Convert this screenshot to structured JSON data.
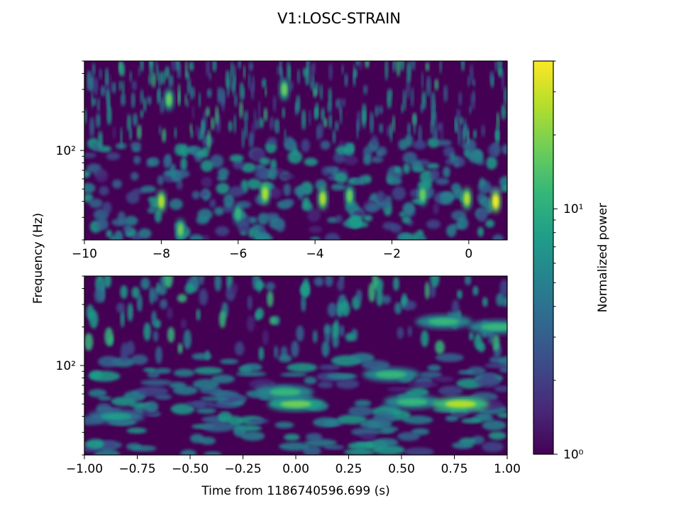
{
  "title": "V1:LOSC-STRAIN",
  "colormap": {
    "label": "Normalized power",
    "scale": "log",
    "range": [
      1,
      40
    ],
    "tick_labels": [
      "10⁰",
      "10¹"
    ],
    "tick_values": [
      1,
      10
    ],
    "stops": [
      "#440154",
      "#482878",
      "#3e4989",
      "#31688e",
      "#26828e",
      "#1f9e89",
      "#35b779",
      "#6ece58",
      "#b5de2b",
      "#fde725"
    ]
  },
  "chart_data": [
    {
      "type": "heatmap",
      "name": "qscan-wide",
      "ylabel": "Frequency (Hz)",
      "xlabel": "",
      "xlim": [
        -10,
        1
      ],
      "ylim": [
        20,
        500
      ],
      "yscale": "log",
      "x_ticks": [
        -10,
        -8,
        -6,
        -4,
        -2,
        0
      ],
      "x_tick_labels": [
        "−10",
        "−8",
        "−6",
        "−4",
        "−2",
        "0"
      ],
      "y_tick_labels": [
        "10²"
      ],
      "y_tick_values": [
        100
      ],
      "hotspots": [
        {
          "t": -8.0,
          "f": 40,
          "power": 25
        },
        {
          "t": -5.3,
          "f": 46,
          "power": 30
        },
        {
          "t": -3.8,
          "f": 42,
          "power": 22
        },
        {
          "t": -3.1,
          "f": 44,
          "power": 18
        },
        {
          "t": -1.2,
          "f": 45,
          "power": 20
        },
        {
          "t": -0.05,
          "f": 42,
          "power": 24
        },
        {
          "t": 0.7,
          "f": 40,
          "power": 35
        },
        {
          "t": -7.5,
          "f": 24,
          "power": 15
        },
        {
          "t": -6.0,
          "f": 32,
          "power": 14
        },
        {
          "t": -4.8,
          "f": 300,
          "power": 20
        },
        {
          "t": -7.8,
          "f": 250,
          "power": 16
        }
      ]
    },
    {
      "type": "heatmap",
      "name": "qscan-zoom",
      "xlabel": "Time from 1186740596.699 (s)",
      "ylabel": "Frequency (Hz)",
      "xlim": [
        -1,
        1
      ],
      "ylim": [
        20,
        500
      ],
      "yscale": "log",
      "x_ticks": [
        -1.0,
        -0.75,
        -0.5,
        -0.25,
        0.0,
        0.25,
        0.5,
        0.75,
        1.0
      ],
      "x_tick_labels": [
        "−1.00",
        "−0.75",
        "−0.50",
        "−0.25",
        "0.00",
        "0.25",
        "0.50",
        "0.75",
        "1.00"
      ],
      "y_tick_labels": [
        "10²"
      ],
      "y_tick_values": [
        100
      ],
      "hotspots": [
        {
          "t": 0.0,
          "f": 50,
          "power": 18
        },
        {
          "t": -0.05,
          "f": 62,
          "power": 12
        },
        {
          "t": 0.55,
          "f": 52,
          "power": 14
        },
        {
          "t": 0.78,
          "f": 50,
          "power": 30
        },
        {
          "t": -0.85,
          "f": 40,
          "power": 8
        },
        {
          "t": 0.45,
          "f": 85,
          "power": 10
        },
        {
          "t": 0.95,
          "f": 200,
          "power": 12
        },
        {
          "t": 0.7,
          "f": 220,
          "power": 10
        }
      ]
    }
  ]
}
